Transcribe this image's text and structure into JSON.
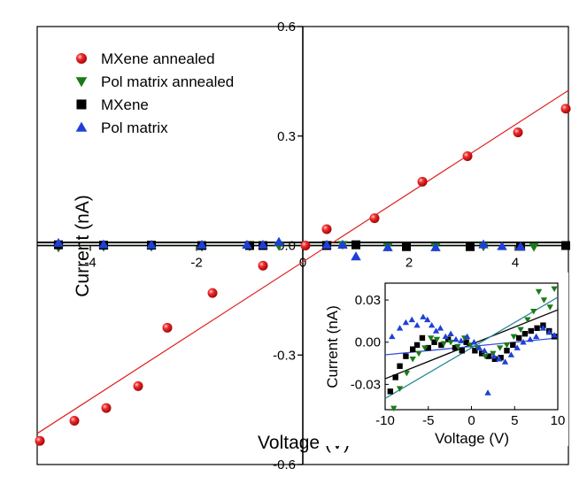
{
  "chart_data": [
    {
      "type": "scatter",
      "xlabel": "Voltage (V)",
      "ylabel": "Current (nA)",
      "xlim": [
        -5,
        5
      ],
      "ylim": [
        -0.6,
        0.6
      ],
      "xticks": [
        -4,
        -2,
        0,
        2,
        4
      ],
      "xtick_labels": [
        "-4",
        "-2",
        "0",
        "2",
        "4"
      ],
      "yticks": [
        0.6,
        0.3,
        0.0,
        -0.3,
        -0.6
      ],
      "ytick_labels": [
        "0.6",
        "0.3",
        "0.0",
        "-0.3",
        "-0.6"
      ],
      "legend_position": "top-left",
      "grid": false,
      "series": [
        {
          "name": "MXene annealed",
          "marker": "sphere",
          "color": "#e02020",
          "points": [
            [
              -4.95,
              -0.535
            ],
            [
              -4.3,
              -0.48
            ],
            [
              -3.7,
              -0.445
            ],
            [
              -3.1,
              -0.385
            ],
            [
              -2.55,
              -0.225
            ],
            [
              -1.7,
              -0.13
            ],
            [
              -0.75,
              -0.055
            ],
            [
              0.05,
              0.0
            ],
            [
              0.45,
              0.045
            ],
            [
              1.35,
              0.075
            ],
            [
              2.25,
              0.175
            ],
            [
              3.1,
              0.245
            ],
            [
              4.05,
              0.31
            ],
            [
              4.95,
              0.375
            ]
          ]
        },
        {
          "name": "Pol matrix annealed",
          "marker": "triangle-down",
          "color": "#1a7a1a",
          "points": [
            [
              -4.6,
              -0.005
            ],
            [
              -3.75,
              -0.003
            ],
            [
              -2.85,
              -0.003
            ],
            [
              -1.9,
              -0.003
            ],
            [
              -1.0,
              -0.002
            ],
            [
              -0.45,
              -0.001
            ],
            [
              0.45,
              0.002
            ],
            [
              0.75,
              0.002
            ],
            [
              1.6,
              -0.003
            ],
            [
              2.5,
              -0.003
            ],
            [
              3.4,
              -0.002
            ],
            [
              4.35,
              -0.003
            ]
          ]
        },
        {
          "name": "MXene",
          "marker": "square",
          "color": "#000000",
          "points": [
            [
              -4.6,
              0.002
            ],
            [
              -3.75,
              0.001
            ],
            [
              -2.85,
              0.001
            ],
            [
              -1.9,
              0.0
            ],
            [
              -1.0,
              0.0
            ],
            [
              -0.75,
              0.0
            ],
            [
              0.45,
              0.0
            ],
            [
              1.0,
              0.002
            ],
            [
              1.95,
              -0.003
            ],
            [
              3.15,
              -0.003
            ],
            [
              4.1,
              -0.002
            ],
            [
              4.95,
              0.0
            ]
          ]
        },
        {
          "name": "Pol matrix",
          "marker": "triangle-up",
          "color": "#1f3fd8",
          "points": [
            [
              -4.6,
              0.007
            ],
            [
              -3.75,
              0.003
            ],
            [
              -2.85,
              0.002
            ],
            [
              -1.9,
              0.002
            ],
            [
              -1.05,
              0.002
            ],
            [
              -0.75,
              0.002
            ],
            [
              -0.45,
              0.01
            ],
            [
              0.45,
              0.002
            ],
            [
              0.75,
              0.002
            ],
            [
              1.0,
              -0.03
            ],
            [
              1.6,
              -0.005
            ],
            [
              2.5,
              -0.005
            ],
            [
              3.4,
              0.003
            ],
            [
              3.75,
              -0.002
            ],
            [
              4.1,
              -0.003
            ]
          ]
        }
      ],
      "fits": [
        {
          "series": "MXene annealed",
          "color": "#e02020",
          "x": [
            -5,
            5
          ],
          "y": [
            -0.515,
            0.425
          ]
        },
        {
          "series": "Pol matrix annealed",
          "color": "#1a7a1a",
          "x": [
            -5,
            5
          ],
          "y": [
            0.0,
            0.0
          ]
        },
        {
          "series": "MXene",
          "color": "#000000",
          "x": [
            -5,
            5
          ],
          "y": [
            0.0,
            0.0
          ]
        }
      ]
    },
    {
      "type": "scatter",
      "role": "inset",
      "xlabel": "Voltage (V)",
      "ylabel": "Current (nA)",
      "xlim": [
        -10,
        10
      ],
      "ylim": [
        -0.048,
        0.042
      ],
      "xticks": [
        -10,
        -5,
        0,
        5,
        10
      ],
      "xtick_labels": [
        "-10",
        "-5",
        "0",
        "5",
        "10"
      ],
      "yticks": [
        0.03,
        0.0,
        -0.03
      ],
      "ytick_labels": [
        "0.03",
        "0.00",
        "-0.03"
      ],
      "grid": false,
      "series": [
        {
          "name": "MXene",
          "marker": "square",
          "color": "#000000",
          "points": [
            [
              -9.4,
              -0.035
            ],
            [
              -8.8,
              -0.025
            ],
            [
              -8.3,
              -0.017
            ],
            [
              -7.6,
              -0.01
            ],
            [
              -6.8,
              -0.005
            ],
            [
              -6.3,
              -0.002
            ],
            [
              -5.7,
              0.003
            ],
            [
              -5.0,
              -0.004
            ],
            [
              -4.3,
              0.0
            ],
            [
              -3.5,
              -0.002
            ],
            [
              -2.7,
              0.002
            ],
            [
              -1.9,
              -0.004
            ],
            [
              -1.1,
              -0.006
            ],
            [
              -0.6,
              0.0
            ],
            [
              0.4,
              -0.006
            ],
            [
              1.2,
              -0.008
            ],
            [
              2.0,
              -0.01
            ],
            [
              2.7,
              -0.012
            ],
            [
              3.4,
              -0.011
            ],
            [
              4.1,
              -0.006
            ],
            [
              4.8,
              -0.002
            ],
            [
              5.5,
              0.003
            ],
            [
              6.2,
              0.006
            ],
            [
              6.9,
              0.008
            ],
            [
              7.6,
              0.01
            ],
            [
              8.3,
              0.012
            ],
            [
              9.0,
              0.008
            ],
            [
              9.6,
              0.004
            ]
          ]
        },
        {
          "name": "Pol matrix annealed",
          "marker": "triangle-down",
          "color": "#1a7a1a",
          "points": [
            [
              -9.0,
              -0.047
            ],
            [
              -8.3,
              -0.033
            ],
            [
              -7.5,
              -0.022
            ],
            [
              -6.8,
              -0.012
            ],
            [
              -6.1,
              -0.008
            ],
            [
              -5.4,
              -0.004
            ],
            [
              -4.7,
              0.003
            ],
            [
              -4.0,
              0.002
            ],
            [
              -3.2,
              -0.001
            ],
            [
              -2.4,
              0.0
            ],
            [
              -1.6,
              -0.003
            ],
            [
              -0.8,
              0.003
            ],
            [
              -0.1,
              -0.002
            ],
            [
              0.7,
              -0.004
            ],
            [
              1.6,
              -0.01
            ],
            [
              2.5,
              -0.008
            ],
            [
              3.3,
              -0.004
            ],
            [
              4.1,
              -0.002
            ],
            [
              4.9,
              0.004
            ],
            [
              5.7,
              0.009
            ],
            [
              6.5,
              0.016
            ],
            [
              7.2,
              0.022
            ],
            [
              7.8,
              0.036
            ],
            [
              8.4,
              0.03
            ],
            [
              9.1,
              0.025
            ],
            [
              9.6,
              0.038
            ]
          ]
        },
        {
          "name": "Pol matrix",
          "marker": "triangle-up",
          "color": "#1f3fd8",
          "points": [
            [
              -9.2,
              0.004
            ],
            [
              -8.3,
              0.01
            ],
            [
              -7.6,
              0.014
            ],
            [
              -6.9,
              0.016
            ],
            [
              -6.3,
              0.012
            ],
            [
              -5.6,
              0.018
            ],
            [
              -5.1,
              0.016
            ],
            [
              -4.6,
              0.012
            ],
            [
              -4.1,
              0.008
            ],
            [
              -3.6,
              0.01
            ],
            [
              -3.0,
              0.004
            ],
            [
              -2.4,
              0.006
            ],
            [
              -1.8,
              0.002
            ],
            [
              -1.2,
              0.001
            ],
            [
              -0.5,
              0.004
            ],
            [
              0.3,
              0.0
            ],
            [
              0.9,
              -0.004
            ],
            [
              1.5,
              -0.006
            ],
            [
              1.9,
              -0.036
            ],
            [
              2.6,
              -0.01
            ],
            [
              3.2,
              -0.012
            ],
            [
              3.9,
              -0.014
            ],
            [
              4.6,
              -0.009
            ],
            [
              5.3,
              -0.004
            ],
            [
              6.0,
              0.0
            ],
            [
              6.8,
              0.002
            ],
            [
              7.5,
              0.004
            ],
            [
              8.3,
              0.01
            ],
            [
              9.0,
              0.007
            ],
            [
              9.6,
              0.005
            ]
          ]
        }
      ],
      "fits": [
        {
          "series": "MXene",
          "color": "#000000",
          "x": [
            -10,
            10
          ],
          "y": [
            -0.026,
            0.023
          ]
        },
        {
          "series": "Pol matrix annealed",
          "color": "#2a8a9a",
          "x": [
            -10,
            10
          ],
          "y": [
            -0.04,
            0.032
          ]
        },
        {
          "series": "Pol matrix",
          "color": "#3050e0",
          "x": [
            -10,
            10
          ],
          "y": [
            -0.009,
            0.003
          ]
        }
      ]
    }
  ]
}
